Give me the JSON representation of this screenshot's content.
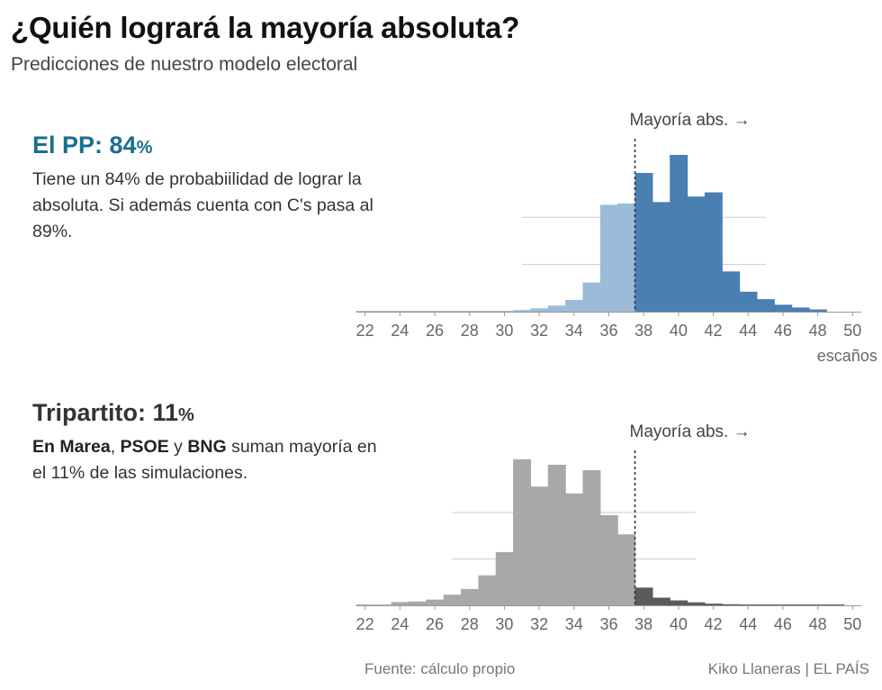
{
  "header": {
    "title": "¿Quién logrará la mayoría absoluta?",
    "subtitle": "Predicciones de nuestro modelo electoral"
  },
  "panels": [
    {
      "heading_name": "El PP: ",
      "heading_value": "84",
      "heading_pct": "%",
      "heading_color": "#1a6e91",
      "text_plain": "Tiene un 84% de probabiilidad de lograr la absoluta. Si además cuenta con C's pasa al 89%."
    },
    {
      "heading_name": "Tripartito: ",
      "heading_value": "11",
      "heading_pct": "%",
      "heading_color": "#333333",
      "text_b1": "En Marea",
      "text_s1": ", ",
      "text_b2": "PSOE",
      "text_s2": " y ",
      "text_b3": "BNG",
      "text_s3": " suman mayoría en el 11% de las simulaciones."
    }
  ],
  "footer": {
    "source": "Fuente: cálculo propio",
    "credit": "Kiko Llaneras  |  EL PAÍS"
  },
  "chart_data": [
    {
      "type": "bar",
      "title": "El PP: 84%",
      "x": [
        22,
        23,
        24,
        25,
        26,
        27,
        28,
        29,
        30,
        31,
        32,
        33,
        34,
        35,
        36,
        37,
        38,
        39,
        40,
        41,
        42,
        43,
        44,
        45,
        46,
        47,
        48,
        49,
        50
      ],
      "values": [
        0.3,
        0.3,
        0.3,
        0.3,
        0.3,
        0.3,
        0.3,
        0.3,
        0.3,
        0.6,
        1.2,
        2.2,
        4.2,
        10.5,
        38.5,
        39,
        50,
        39.5,
        56.5,
        41.5,
        43,
        14.5,
        7.2,
        4.5,
        2.5,
        1.5,
        0.8,
        0,
        0
      ],
      "majority_threshold": 38,
      "color_below": "#9bbbd9",
      "color_above": "#4a7fb2",
      "threshold_label": "Mayoría abs. →",
      "xlabel": "escaños",
      "xticks": [
        22,
        24,
        26,
        28,
        30,
        32,
        34,
        36,
        38,
        40,
        42,
        44,
        46,
        48,
        50
      ],
      "xlim": [
        21.5,
        50.5
      ],
      "ylim": [
        0,
        60
      ],
      "gridlines": [
        17,
        34
      ],
      "grid_range": [
        31,
        45
      ]
    },
    {
      "type": "bar",
      "title": "Tripartito: 11%",
      "x": [
        22,
        23,
        24,
        25,
        26,
        27,
        28,
        29,
        30,
        31,
        32,
        33,
        34,
        35,
        36,
        37,
        38,
        39,
        40,
        41,
        42,
        43,
        44,
        45,
        46,
        47,
        48,
        49,
        50
      ],
      "values": [
        0.3,
        0.3,
        1.2,
        1.4,
        2.1,
        3.9,
        6,
        11,
        19.5,
        53.5,
        43.5,
        51.5,
        41,
        49.5,
        33,
        26,
        6.5,
        2.8,
        1.8,
        1.1,
        0.6,
        0.4,
        0.3,
        0.3,
        0.3,
        0.3,
        0.3,
        0.3,
        0
      ],
      "majority_threshold": 38,
      "color_below": "#a8a8a8",
      "color_above": "#5b5b5b",
      "threshold_label": "Mayoría abs. →",
      "xlabel": "",
      "xticks": [
        22,
        24,
        26,
        28,
        30,
        32,
        34,
        36,
        38,
        40,
        42,
        44,
        46,
        48,
        50
      ],
      "xlim": [
        21.5,
        50.5
      ],
      "ylim": [
        0,
        60
      ],
      "gridlines": [
        17,
        34
      ],
      "grid_range": [
        27,
        41
      ]
    }
  ]
}
